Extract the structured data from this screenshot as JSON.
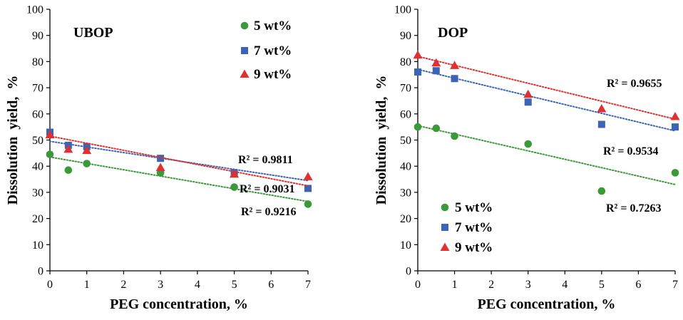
{
  "chart_data": [
    {
      "type": "scatter",
      "title": "UBOP",
      "xlabel": "PEG concentration, %",
      "ylabel": "Dissolution  yield,  %",
      "xlim": [
        0,
        7
      ],
      "ylim": [
        0,
        100
      ],
      "xticks": [
        "0",
        "1",
        "2",
        "3",
        "4",
        "5",
        "6",
        "7"
      ],
      "yticks": [
        "0",
        "10",
        "20",
        "30",
        "40",
        "50",
        "60",
        "70",
        "80",
        "90",
        "100"
      ],
      "legend_position": "top-right",
      "series": [
        {
          "name": "5 wt%",
          "marker": "circle",
          "color": "#3a9a3a",
          "x": [
            0,
            0.5,
            1,
            3,
            5,
            7
          ],
          "y": [
            44.5,
            38.5,
            41,
            37.5,
            32,
            25.5
          ],
          "trend": [
            43.5,
            26.5
          ],
          "r2": "R² = 0.9216"
        },
        {
          "name": "7 wt%",
          "marker": "square",
          "color": "#3b64b5",
          "x": [
            0,
            0.5,
            1,
            3,
            5,
            7
          ],
          "y": [
            53,
            48,
            47.5,
            43,
            37.5,
            31.5
          ],
          "trend": [
            49.5,
            34.5
          ],
          "r2": "R² = 0.9031"
        },
        {
          "name": "9 wt%",
          "marker": "triangle",
          "color": "#e03030",
          "x": [
            0,
            0.5,
            1,
            3,
            5,
            7
          ],
          "y": [
            52,
            46.5,
            46,
            39.5,
            37,
            36
          ],
          "trend": [
            51.5,
            32.5
          ],
          "r2": "R² = 0.9811"
        }
      ]
    },
    {
      "type": "scatter",
      "title": "DOP",
      "xlabel": "PEG concentration, %",
      "ylabel": "Dissolution  yield,  %",
      "xlim": [
        0,
        7
      ],
      "ylim": [
        0,
        100
      ],
      "xticks": [
        "0",
        "1",
        "2",
        "3",
        "4",
        "5",
        "6",
        "7"
      ],
      "yticks": [
        "0",
        "10",
        "20",
        "30",
        "40",
        "50",
        "60",
        "70",
        "80",
        "90",
        "100"
      ],
      "legend_position": "bottom-left",
      "series": [
        {
          "name": "5 wt%",
          "marker": "circle",
          "color": "#3a9a3a",
          "x": [
            0,
            0.5,
            1,
            3,
            5,
            7
          ],
          "y": [
            55,
            54.5,
            51.5,
            48.5,
            30.5,
            37.5
          ],
          "trend": [
            55.5,
            33
          ],
          "r2": "R² = 0.7263"
        },
        {
          "name": "7 wt%",
          "marker": "square",
          "color": "#3b64b5",
          "x": [
            0,
            0.5,
            1,
            3,
            5,
            7
          ],
          "y": [
            76,
            76.5,
            73.5,
            64.5,
            56,
            55
          ],
          "trend": [
            77,
            53.5
          ],
          "r2": "R² = 0.9534"
        },
        {
          "name": "9 wt%",
          "marker": "triangle",
          "color": "#e03030",
          "x": [
            0,
            0.5,
            1,
            3,
            5,
            7
          ],
          "y": [
            82.5,
            79.5,
            78.5,
            67.5,
            62,
            59
          ],
          "trend": [
            82,
            58
          ],
          "r2": "R² = 0.9655"
        }
      ]
    }
  ]
}
